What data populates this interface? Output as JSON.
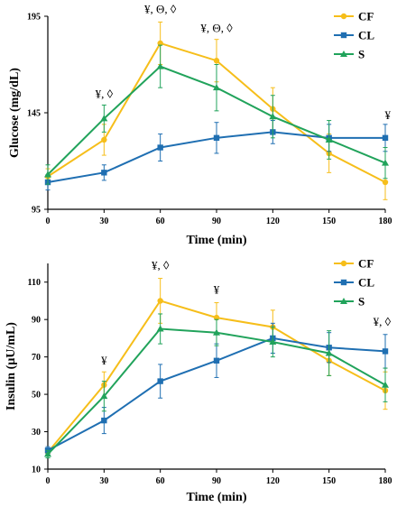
{
  "chart_data": [
    {
      "type": "line",
      "title": "",
      "xlabel": "Time (min)",
      "ylabel": "Glucose (mg/dL)",
      "x": [
        0,
        30,
        60,
        90,
        120,
        150,
        180
      ],
      "xticks": [
        "0",
        "30",
        "60",
        "90",
        "120",
        "150",
        "180"
      ],
      "yticks": [
        "95",
        "145",
        "195"
      ],
      "ylim": [
        95,
        195
      ],
      "xlim": [
        0,
        180
      ],
      "grid": false,
      "legend_position": "top-right",
      "series": [
        {
          "name": "CF",
          "color": "#F6BE1A",
          "marker": "circle",
          "values": [
            112,
            131,
            181,
            172,
            147,
            124,
            109
          ],
          "errors": [
            4,
            8,
            11,
            11,
            11,
            10,
            9
          ]
        },
        {
          "name": "CL",
          "color": "#1F6FB2",
          "marker": "square",
          "values": [
            109,
            114,
            127,
            132,
            135,
            132,
            132
          ],
          "errors": [
            4,
            4,
            7,
            8,
            6,
            7,
            7
          ]
        },
        {
          "name": "S",
          "color": "#21A35B",
          "marker": "triangle",
          "values": [
            113,
            142,
            169,
            158,
            143,
            131,
            119
          ],
          "errors": [
            5,
            7,
            11,
            12,
            11,
            10,
            8
          ]
        }
      ],
      "annotations": [
        {
          "x": 30,
          "text": "¥, ◊"
        },
        {
          "x": 60,
          "text": "¥, Θ, ◊"
        },
        {
          "x": 90,
          "text": "¥, Θ, ◊"
        },
        {
          "x": 180,
          "text": "¥"
        }
      ]
    },
    {
      "type": "line",
      "title": "",
      "xlabel": "Time (min)",
      "ylabel": "Insulin (µU/mL)",
      "x": [
        0,
        30,
        60,
        90,
        120,
        150,
        180
      ],
      "xticks": [
        "0",
        "30",
        "60",
        "90",
        "120",
        "150",
        "180"
      ],
      "yticks": [
        "10",
        "30",
        "50",
        "70",
        "90",
        "110"
      ],
      "ylim": [
        10,
        120
      ],
      "xlim": [
        0,
        180
      ],
      "grid": false,
      "legend_position": "top-right",
      "series": [
        {
          "name": "CF",
          "color": "#F6BE1A",
          "marker": "circle",
          "values": [
            19,
            55,
            100,
            91,
            86,
            68,
            52
          ],
          "errors": [
            2,
            7,
            12,
            8,
            9,
            8,
            10
          ]
        },
        {
          "name": "CL",
          "color": "#1F6FB2",
          "marker": "square",
          "values": [
            20,
            36,
            57,
            68,
            80,
            75,
            73
          ],
          "errors": [
            2,
            7,
            9,
            9,
            8,
            8,
            9
          ]
        },
        {
          "name": "S",
          "color": "#21A35B",
          "marker": "triangle",
          "values": [
            18,
            49,
            85,
            83,
            78,
            72,
            55
          ],
          "errors": [
            2,
            8,
            8,
            7,
            8,
            12,
            9
          ]
        }
      ],
      "annotations": [
        {
          "x": 30,
          "text": "¥"
        },
        {
          "x": 60,
          "text": "¥, ◊"
        },
        {
          "x": 90,
          "text": "¥"
        },
        {
          "x": 180,
          "text": "¥, ◊"
        }
      ]
    }
  ]
}
